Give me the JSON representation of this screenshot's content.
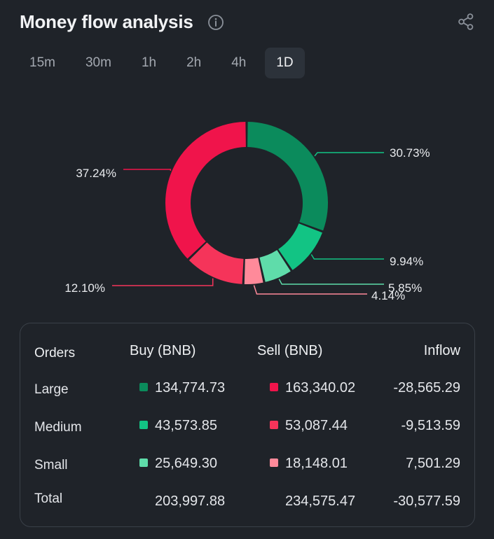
{
  "header": {
    "title": "Money flow analysis",
    "info_icon": "info-icon",
    "share_icon": "share-icon"
  },
  "tabs": [
    {
      "label": "15m",
      "active": false
    },
    {
      "label": "30m",
      "active": false
    },
    {
      "label": "1h",
      "active": false
    },
    {
      "label": "2h",
      "active": false
    },
    {
      "label": "4h",
      "active": false
    },
    {
      "label": "1D",
      "active": true
    }
  ],
  "colors": {
    "large_buy": "#0b8b5c",
    "medium_buy": "#12c484",
    "small_buy": "#5fdcaa",
    "large_sell": "#f0144b",
    "medium_sell": "#f5345a",
    "small_sell": "#ff8a9a"
  },
  "chart_data": {
    "type": "pie",
    "variant": "donut",
    "title": "",
    "slices": [
      {
        "name": "Large Buy",
        "value": 30.73,
        "label": "30.73%",
        "color": "#0b8b5c"
      },
      {
        "name": "Medium Buy",
        "value": 9.94,
        "label": "9.94%",
        "color": "#12c484"
      },
      {
        "name": "Small Buy",
        "value": 5.85,
        "label": "5.85%",
        "color": "#5fdcaa"
      },
      {
        "name": "Small Sell",
        "value": 4.14,
        "label": "4.14%",
        "color": "#ff8a9a"
      },
      {
        "name": "Medium Sell",
        "value": 12.1,
        "label": "12.10%",
        "color": "#f5345a"
      },
      {
        "name": "Large Sell",
        "value": 37.24,
        "label": "37.24%",
        "color": "#f0144b"
      }
    ]
  },
  "table": {
    "headers": {
      "orders": "Orders",
      "buy": "Buy (BNB)",
      "sell": "Sell (BNB)",
      "inflow": "Inflow"
    },
    "rows": [
      {
        "label": "Large",
        "buy": "134,774.73",
        "sell": "163,340.02",
        "inflow": "-28,565.29",
        "buy_color": "#0b8b5c",
        "sell_color": "#f0144b"
      },
      {
        "label": "Medium",
        "buy": "43,573.85",
        "sell": "53,087.44",
        "inflow": "-9,513.59",
        "buy_color": "#12c484",
        "sell_color": "#f5345a"
      },
      {
        "label": "Small",
        "buy": "25,649.30",
        "sell": "18,148.01",
        "inflow": "7,501.29",
        "buy_color": "#5fdcaa",
        "sell_color": "#ff8a9a"
      }
    ],
    "total": {
      "label": "Total",
      "buy": "203,997.88",
      "sell": "234,575.47",
      "inflow": "-30,577.59"
    }
  }
}
